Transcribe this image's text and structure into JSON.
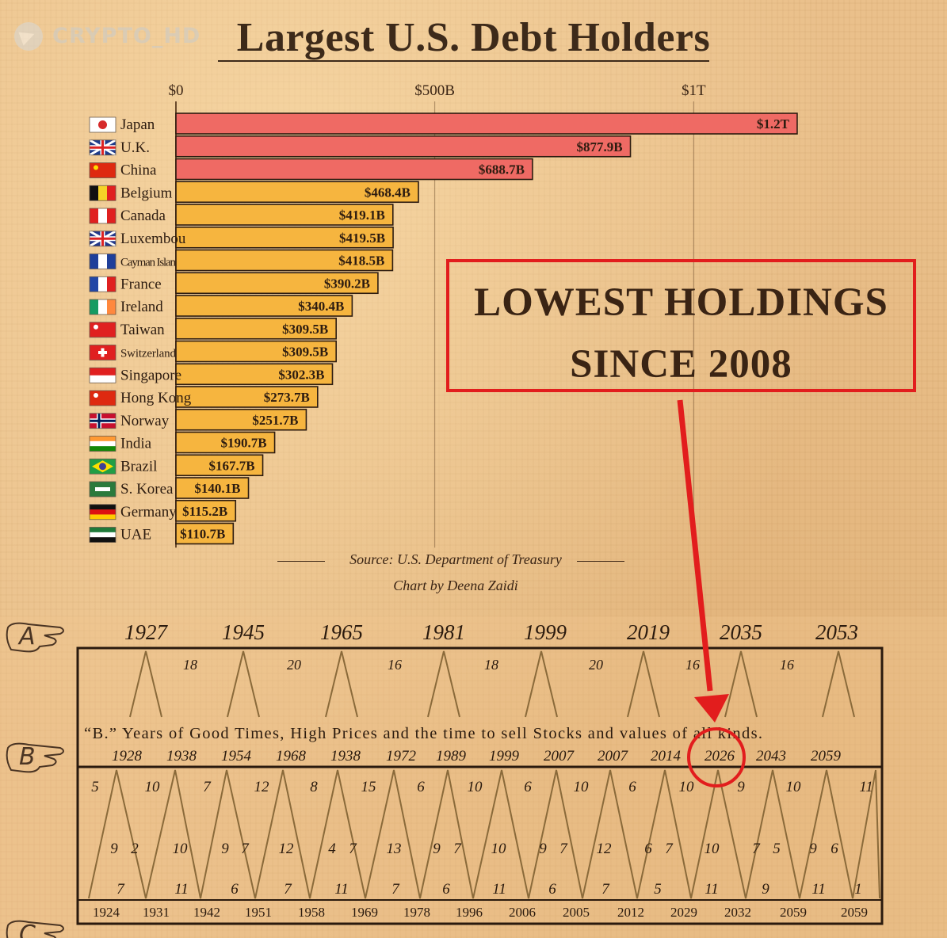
{
  "watermark": {
    "text": "CRYPTO_HD"
  },
  "chart_data": {
    "type": "bar",
    "orientation": "horizontal",
    "title": "Largest U.S. Debt Holders",
    "categories": [
      "Japan",
      "U.K.",
      "China",
      "Belgium",
      "Canada",
      "Luxembou",
      "Cayman Islan",
      "France",
      "Ireland",
      "Taiwan",
      "Switzerland",
      "Singapore",
      "Hong Kong",
      "Norway",
      "India",
      "Brazil",
      "S. Korea",
      "Germany",
      "UAE"
    ],
    "values": [
      1200,
      877.9,
      688.7,
      468.4,
      419.1,
      419.5,
      418.5,
      390.2,
      340.4,
      309.5,
      309.5,
      302.3,
      273.7,
      251.7,
      190.7,
      167.7,
      140.1,
      115.2,
      110.7
    ],
    "value_labels": [
      "$1.2T",
      "$877.9B",
      "$688.7B",
      "$468.4B",
      "$419.1B",
      "$419.5B",
      "$418.5B",
      "$390.2B",
      "$340.4B",
      "$309.5B",
      "$309.5B",
      "$302.3B",
      "$273.7B",
      "$251.7B",
      "$190.7B",
      "$167.7B",
      "$140.1B",
      "$115.2B",
      "$110.7B"
    ],
    "bar_colors": [
      "#ef6a64",
      "#ef6a64",
      "#ef6a64",
      "#f6b53f",
      "#f6b53f",
      "#f6b53f",
      "#f6b53f",
      "#f6b53f",
      "#f6b53f",
      "#f6b53f",
      "#f6b53f",
      "#f6b53f",
      "#f6b53f",
      "#f6b53f",
      "#f6b53f",
      "#f6b53f",
      "#f6b53f",
      "#f6b53f",
      "#f6b53f"
    ],
    "x_ticks": [
      0,
      500,
      1000
    ],
    "x_tick_labels": [
      "$0",
      "$500B",
      "$1T"
    ],
    "xlim": [
      0,
      1200
    ],
    "grid": true
  },
  "source": "Source: U.S. Department of Treasury",
  "credit": "Chart by Deena Zaidi",
  "callout": {
    "line1": "LOWEST HOLDINGS",
    "line2": "SINCE 2008",
    "color": "#e21d1d"
  },
  "benner": {
    "row_a_letter": "A",
    "row_b_letter": "B",
    "row_c_letter": "C",
    "row_a_years": [
      "1927",
      "1945",
      "1965",
      "1981",
      "1999",
      "2019",
      "2035",
      "2053"
    ],
    "row_a_intervals": [
      "18",
      "20",
      "16",
      "18",
      "20",
      "16",
      "16"
    ],
    "caption": "“B.” Years of Good Times, High Prices and the time to sell Stocks and values of all kinds.",
    "row_b_years": [
      "1928",
      "1938",
      "1954",
      "1968",
      "1938",
      "1972",
      "1989",
      "1999",
      "2007",
      "2007",
      "2014",
      "2026",
      "2043",
      "2059"
    ],
    "highlight_year": "2026",
    "upper_numbers": [
      "5",
      "10",
      "7",
      "12",
      "8",
      "15",
      "6",
      "10",
      "6",
      "10",
      "6",
      "10",
      "9",
      "10",
      "11"
    ],
    "middle_numbers": [
      "9",
      "2",
      "10",
      "9",
      "7",
      "12",
      "4",
      "7",
      "13",
      "9",
      "7",
      "10",
      "9",
      "7",
      "12",
      "6",
      "7",
      "10",
      "7",
      "5",
      "9",
      "6"
    ],
    "lower_numbers": [
      "7",
      "11",
      "6",
      "7",
      "11",
      "7",
      "6",
      "11",
      "6",
      "7",
      "5",
      "11",
      "9",
      "11",
      "1"
    ],
    "row_c_years": [
      "1924",
      "1931",
      "1942",
      "1951",
      "1958",
      "1969",
      "1978",
      "1996",
      "2006",
      "2005",
      "2012",
      "2029",
      "2032",
      "2059",
      "2059"
    ]
  }
}
